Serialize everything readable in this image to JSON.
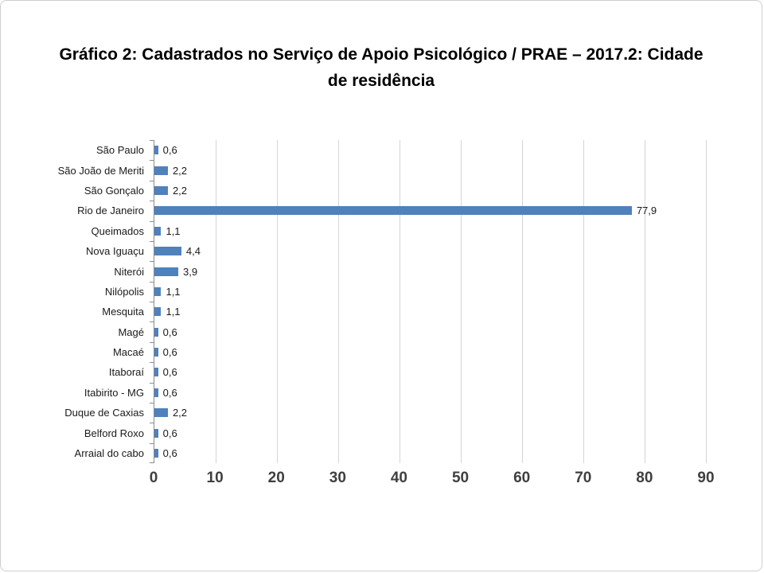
{
  "title": "Gráfico 2: Cadastrados no Serviço de Apoio Psicológico / PRAE – 2017.2: Cidade de residência",
  "chart_data": {
    "type": "bar",
    "orientation": "horizontal",
    "title": "Gráfico 2: Cadastrados no Serviço de Apoio Psicológico / PRAE – 2017.2: Cidade de residência",
    "categories": [
      "São Paulo",
      "São João de Meriti",
      "São Gonçalo",
      "Rio de Janeiro",
      "Queimados",
      "Nova Iguaçu",
      "Niterói",
      "Nilópolis",
      "Mesquita",
      "Magé",
      "Macaé",
      "Itaboraí",
      "Itabirito - MG",
      "Duque de Caxias",
      "Belford Roxo",
      "Arraial do cabo"
    ],
    "values": [
      0.6,
      2.2,
      2.2,
      77.9,
      1.1,
      4.4,
      3.9,
      1.1,
      1.1,
      0.6,
      0.6,
      0.6,
      0.6,
      2.2,
      0.6,
      0.6
    ],
    "value_labels": [
      "0,6",
      "2,2",
      "2,2",
      "77,9",
      "1,1",
      "4,4",
      "3,9",
      "1,1",
      "1,1",
      "0,6",
      "0,6",
      "0,6",
      "0,6",
      "2,2",
      "0,6",
      "0,6"
    ],
    "xlabel": "",
    "ylabel": "",
    "xlim": [
      0,
      90
    ],
    "x_ticks": [
      0,
      10,
      20,
      30,
      40,
      50,
      60,
      70,
      80,
      90
    ],
    "x_tick_labels": [
      "0",
      "10",
      "20",
      "30",
      "40",
      "50",
      "60",
      "70",
      "80",
      "90"
    ],
    "bar_color": "#4f81bd",
    "gridlines": true,
    "legend": "none"
  }
}
